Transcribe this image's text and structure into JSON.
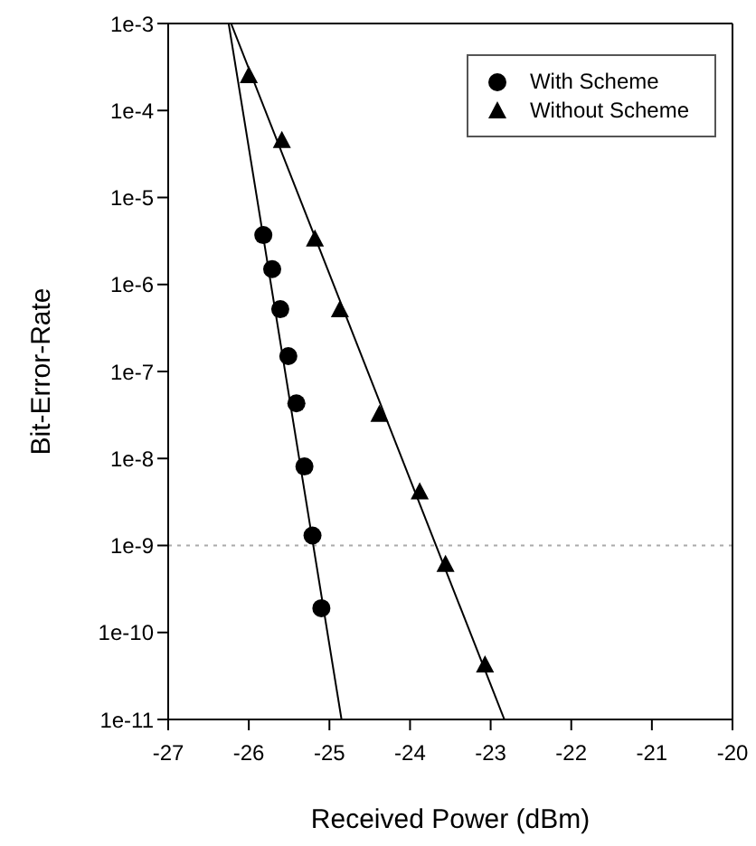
{
  "chart_data": {
    "type": "scatter",
    "xlabel": "Received Power (dBm)",
    "ylabel": "Bit-Error-Rate",
    "log": "y",
    "legend": "top right",
    "xlim": [
      -27,
      -20
    ],
    "xticks": [
      -27,
      -26,
      -25,
      -24,
      -23,
      -22,
      -21,
      -20
    ],
    "ylim": [
      1e-11,
      0.001
    ],
    "yticks": [
      {
        "value": 1e-11,
        "label": "1e-11"
      },
      {
        "value": 1e-10,
        "label": "1e-10"
      },
      {
        "value": 1e-09,
        "label": "1e-9"
      },
      {
        "value": 1e-08,
        "label": "1e-8"
      },
      {
        "value": 1e-07,
        "label": "1e-7"
      },
      {
        "value": 1e-06,
        "label": "1e-6"
      },
      {
        "value": 1e-05,
        "label": "1e-5"
      },
      {
        "value": 0.0001,
        "label": "1e-4"
      },
      {
        "value": 0.001,
        "label": "1e-3"
      }
    ],
    "ref_lines": [
      {
        "axis": "y",
        "value": 1e-09,
        "color": "#aaaaaa",
        "line_style": "dotted"
      }
    ],
    "series": [
      {
        "name": "With Scheme",
        "marker": "circle",
        "color": "#000000",
        "x": [
          -25.82,
          -25.71,
          -25.61,
          -25.51,
          -25.41,
          -25.31,
          -25.21,
          -25.1
        ],
        "values": [
          3.7e-06,
          1.5e-06,
          5.2e-07,
          1.5e-07,
          4.3e-08,
          8.1e-09,
          1.3e-09,
          1.9e-10
        ]
      },
      {
        "name": "Without Scheme",
        "marker": "triangle",
        "color": "#000000",
        "x": [
          -26.0,
          -25.59,
          -25.18,
          -24.87,
          -24.38,
          -23.88,
          -23.56,
          -23.07
        ],
        "values": [
          0.00025,
          4.5e-05,
          3.3e-06,
          5.1e-07,
          3.2e-08,
          4.1e-09,
          6e-10,
          4.2e-11
        ]
      },
      {
        "type": "line",
        "marker": "none",
        "color": "#000000",
        "x": [
          -26.25,
          -24.85
        ],
        "values": [
          0.001,
          1e-11
        ]
      },
      {
        "type": "line",
        "marker": "none",
        "color": "#000000",
        "x": [
          -26.22,
          -22.83
        ],
        "values": [
          0.001,
          1e-11
        ]
      }
    ]
  }
}
